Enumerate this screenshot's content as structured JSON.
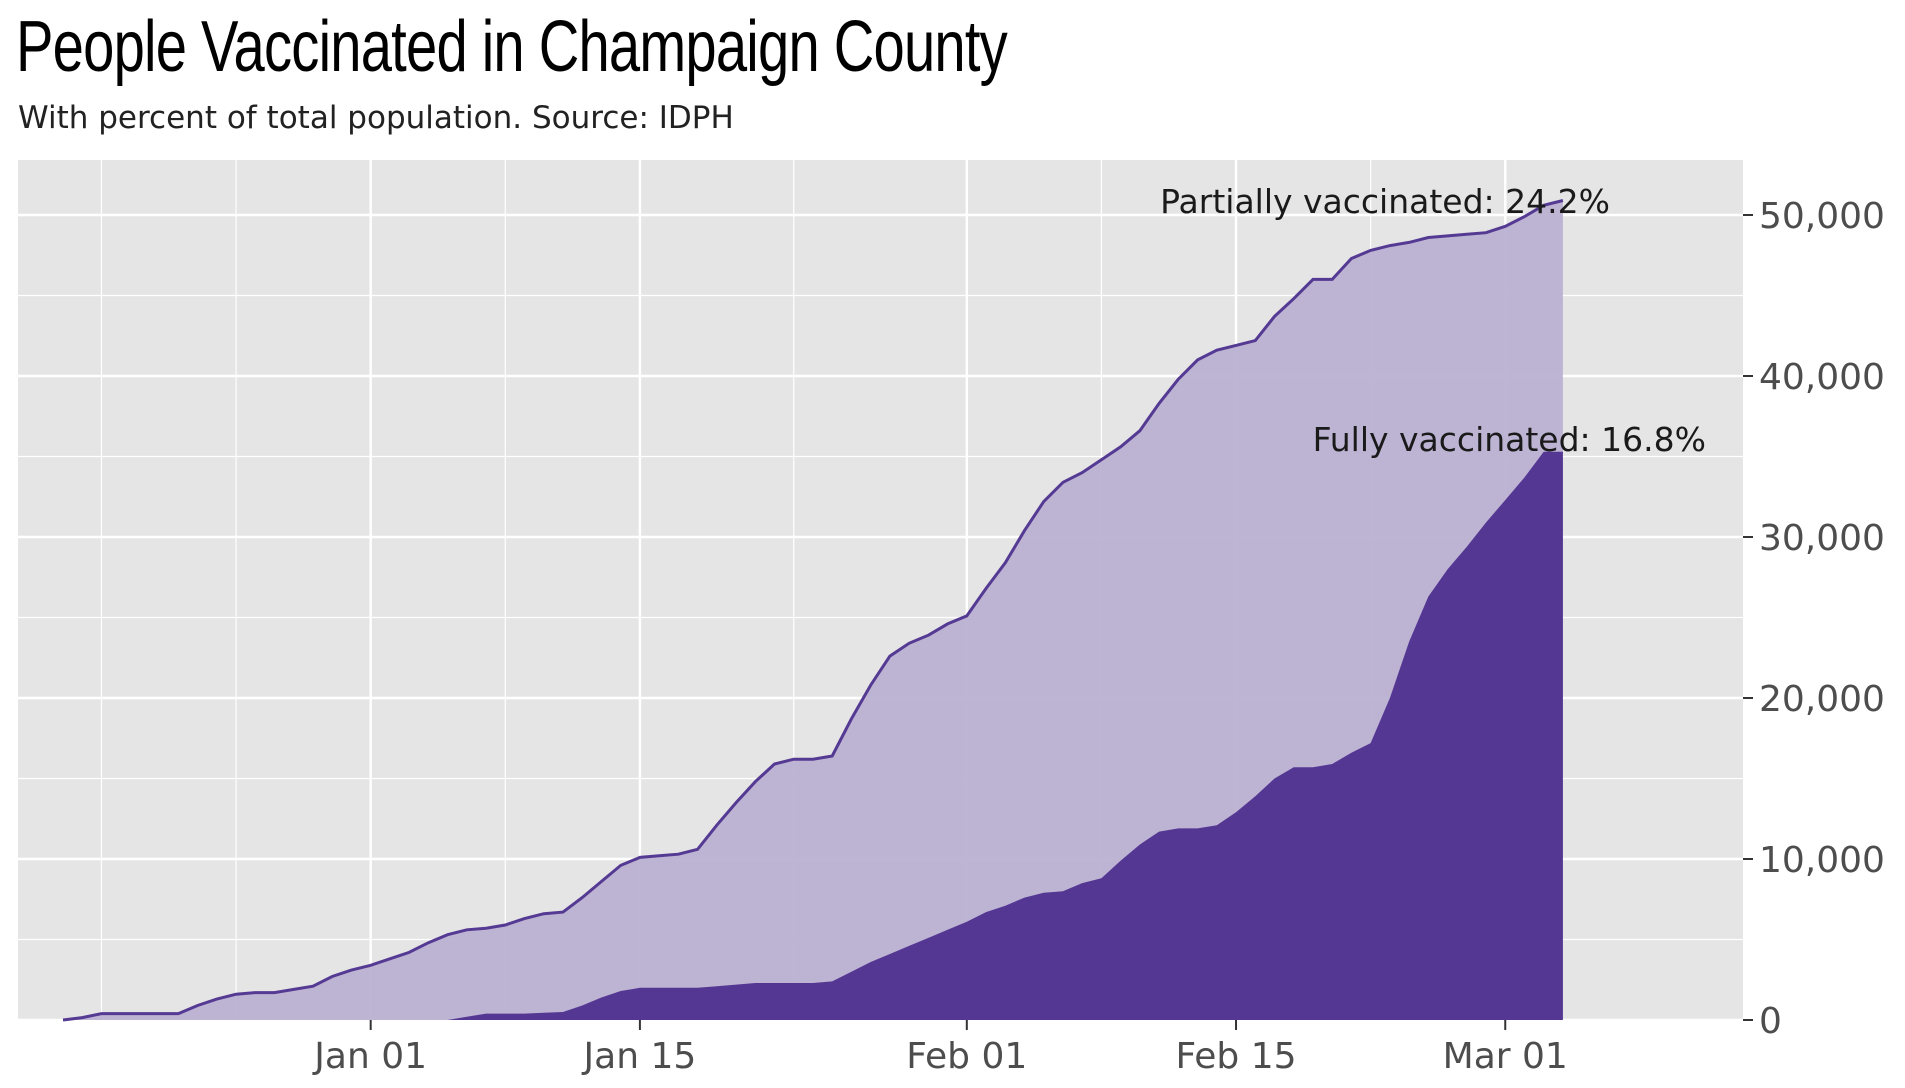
{
  "title": "People Vaccinated in Champaign County",
  "subtitle": "With percent of total population. Source: IDPH",
  "colors": {
    "panel": "#e5e5e5",
    "grid": "#ffffff",
    "partial_fill": "#bab0d2",
    "partial_line": "#553a93",
    "full_fill": "#543792"
  },
  "chart_data": {
    "type": "area",
    "title": "People Vaccinated in Champaign County",
    "subtitle": "With percent of total population. Source: IDPH",
    "xlabel": "",
    "ylabel": "",
    "y_axis_position": "right",
    "ylim": [
      0,
      50000
    ],
    "yticks": [
      0,
      10000,
      20000,
      30000,
      40000,
      50000
    ],
    "ytick_labels": [
      "0",
      "10,000",
      "20,000",
      "30,000",
      "40,000",
      "50,000"
    ],
    "xticks": [
      "2021-01-01",
      "2021-01-15",
      "2021-02-01",
      "2021-02-15",
      "2021-03-01"
    ],
    "xtick_labels": [
      "Jan 01",
      "Jan 15",
      "Feb 01",
      "Feb 15",
      "Mar 01"
    ],
    "grid": true,
    "x_range": [
      "2020-12-16",
      "2021-03-04"
    ],
    "series": [
      {
        "name": "Partially vaccinated",
        "label": "Partially vaccinated: 24.2%",
        "color": "#bab0d2",
        "x": [
          "2020-12-16",
          "2020-12-17",
          "2020-12-18",
          "2020-12-20",
          "2020-12-22",
          "2020-12-23",
          "2020-12-24",
          "2020-12-25",
          "2020-12-26",
          "2020-12-27",
          "2020-12-28",
          "2020-12-29",
          "2020-12-30",
          "2020-12-31",
          "2021-01-01",
          "2021-01-02",
          "2021-01-03",
          "2021-01-04",
          "2021-01-05",
          "2021-01-06",
          "2021-01-07",
          "2021-01-08",
          "2021-01-09",
          "2021-01-10",
          "2021-01-11",
          "2021-01-12",
          "2021-01-13",
          "2021-01-14",
          "2021-01-15",
          "2021-01-16",
          "2021-01-17",
          "2021-01-18",
          "2021-01-19",
          "2021-01-20",
          "2021-01-21",
          "2021-01-22",
          "2021-01-23",
          "2021-01-24",
          "2021-01-25",
          "2021-01-26",
          "2021-01-27",
          "2021-01-28",
          "2021-01-29",
          "2021-01-30",
          "2021-01-31",
          "2021-02-01",
          "2021-02-02",
          "2021-02-03",
          "2021-02-04",
          "2021-02-05",
          "2021-02-06",
          "2021-02-07",
          "2021-02-08",
          "2021-02-09",
          "2021-02-10",
          "2021-02-11",
          "2021-02-12",
          "2021-02-13",
          "2021-02-14",
          "2021-02-15",
          "2021-02-16",
          "2021-02-17",
          "2021-02-18",
          "2021-02-19",
          "2021-02-20",
          "2021-02-21",
          "2021-02-22",
          "2021-02-23",
          "2021-02-24",
          "2021-02-25",
          "2021-02-26",
          "2021-02-27",
          "2021-02-28",
          "2021-03-01",
          "2021-03-02",
          "2021-03-03",
          "2021-03-04"
        ],
        "values": [
          0,
          150,
          400,
          400,
          400,
          900,
          1300,
          1600,
          1700,
          1700,
          1900,
          2100,
          2700,
          3100,
          3400,
          3800,
          4200,
          4800,
          5300,
          5600,
          5700,
          5900,
          6300,
          6600,
          6700,
          7600,
          8600,
          9600,
          10100,
          10200,
          10300,
          10600,
          12100,
          13500,
          14800,
          15900,
          16200,
          16200,
          16400,
          18700,
          20800,
          22600,
          23400,
          23900,
          24600,
          25100,
          26800,
          28400,
          30400,
          32200,
          33400,
          34000,
          34800,
          35600,
          36600,
          38300,
          39800,
          41000,
          41600,
          41900,
          42200,
          43700,
          44800,
          46000,
          46000,
          47300,
          47800,
          48100,
          48300,
          48600,
          48700,
          48800,
          48900,
          49300,
          49900,
          50600,
          50900
        ]
      },
      {
        "name": "Fully vaccinated",
        "label": "Fully vaccinated: 16.8%",
        "color": "#543792",
        "x": [
          "2020-12-16",
          "2021-01-05",
          "2021-01-06",
          "2021-01-07",
          "2021-01-08",
          "2021-01-09",
          "2021-01-10",
          "2021-01-11",
          "2021-01-12",
          "2021-01-13",
          "2021-01-14",
          "2021-01-15",
          "2021-01-16",
          "2021-01-17",
          "2021-01-18",
          "2021-01-19",
          "2021-01-20",
          "2021-01-21",
          "2021-01-22",
          "2021-01-23",
          "2021-01-24",
          "2021-01-25",
          "2021-01-26",
          "2021-01-27",
          "2021-01-28",
          "2021-01-29",
          "2021-01-30",
          "2021-01-31",
          "2021-02-01",
          "2021-02-02",
          "2021-02-03",
          "2021-02-04",
          "2021-02-05",
          "2021-02-06",
          "2021-02-07",
          "2021-02-08",
          "2021-02-09",
          "2021-02-10",
          "2021-02-11",
          "2021-02-12",
          "2021-02-13",
          "2021-02-14",
          "2021-02-15",
          "2021-02-16",
          "2021-02-17",
          "2021-02-18",
          "2021-02-19",
          "2021-02-20",
          "2021-02-21",
          "2021-02-22",
          "2021-02-23",
          "2021-02-24",
          "2021-02-25",
          "2021-02-26",
          "2021-02-27",
          "2021-02-28",
          "2021-03-01",
          "2021-03-02",
          "2021-03-03",
          "2021-03-04"
        ],
        "values": [
          0,
          0,
          200,
          400,
          400,
          400,
          450,
          500,
          900,
          1400,
          1800,
          2000,
          2000,
          2000,
          2000,
          2100,
          2200,
          2300,
          2300,
          2300,
          2300,
          2400,
          3000,
          3600,
          4100,
          4600,
          5100,
          5600,
          6100,
          6700,
          7100,
          7600,
          7900,
          8000,
          8500,
          8800,
          9900,
          10900,
          11700,
          11900,
          11900,
          12100,
          12900,
          13900,
          15000,
          15700,
          15700,
          15900,
          16600,
          17200,
          20000,
          23500,
          26300,
          28000,
          29400,
          30900,
          32300,
          33700,
          35300,
          35300
        ]
      }
    ],
    "annotations": [
      "Partially vaccinated: 24.2%",
      "Fully vaccinated: 16.8%"
    ]
  }
}
